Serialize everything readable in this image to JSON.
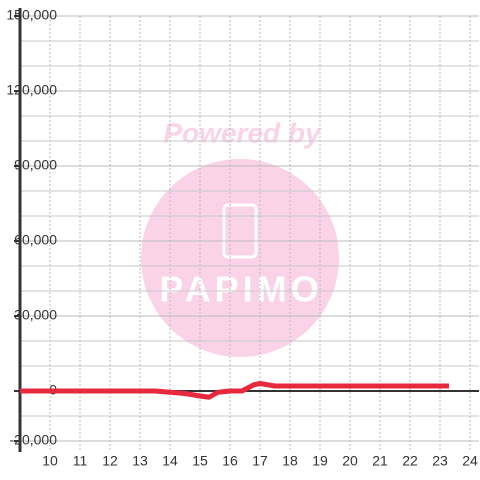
{
  "chart_data": {
    "type": "line",
    "annotations": [
      "Powered by",
      "PAPIMO"
    ],
    "x": [
      9,
      13.5,
      14,
      14.5,
      15,
      15.3,
      15.6,
      16,
      16.4,
      16.8,
      17,
      17.5,
      18,
      19,
      20,
      21,
      22,
      23.3
    ],
    "series": [
      {
        "name": "value",
        "color": "#e8283c",
        "values": [
          0,
          0,
          -500,
          -1000,
          -2000,
          -2500,
          -500,
          0,
          0,
          2500,
          3000,
          2000,
          2000,
          2000,
          2000,
          2000,
          2000,
          2000
        ]
      }
    ],
    "xlim": [
      9,
      24.3
    ],
    "xticks": [
      10,
      11,
      12,
      13,
      14,
      15,
      16,
      17,
      18,
      19,
      20,
      21,
      22,
      23,
      24
    ],
    "ylim": [
      -20000,
      150000
    ],
    "yticks": [
      {
        "value": -20000,
        "label": "-20,000"
      },
      {
        "value": 0,
        "label": "0"
      },
      {
        "value": 30000,
        "label": "30,000"
      },
      {
        "value": 60000,
        "label": "60,000"
      },
      {
        "value": 90000,
        "label": "90,000"
      },
      {
        "value": 120000,
        "label": "120,000"
      },
      {
        "value": 150000,
        "label": "150,000"
      }
    ],
    "grid": true
  }
}
